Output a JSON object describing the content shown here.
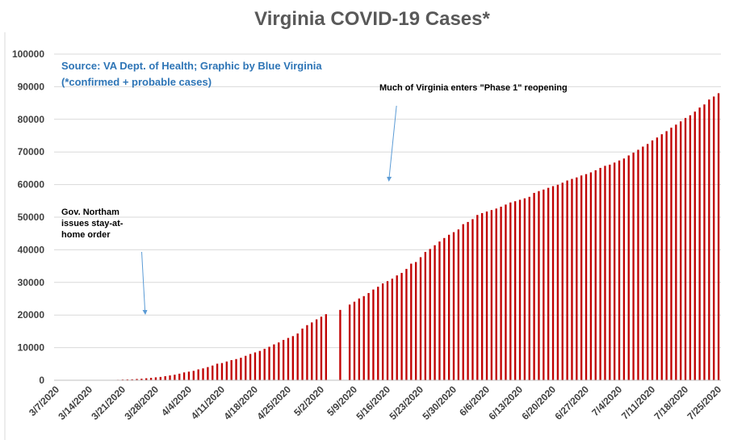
{
  "chart_data": {
    "type": "bar",
    "title": "Virginia COVID-19 Cases*",
    "source_line1": "Source: VA Dept. of Health; Graphic by Blue Virginia",
    "source_line2": "(*confirmed + probable cases)",
    "xlabel": "",
    "ylabel": "",
    "ylim": [
      0,
      100000
    ],
    "yticks": [
      "0",
      "10000",
      "20000",
      "30000",
      "40000",
      "50000",
      "60000",
      "70000",
      "80000",
      "90000",
      "100000"
    ],
    "xticks": [
      "3/7/2020",
      "3/14/2020",
      "3/21/2020",
      "3/28/2020",
      "4/4/2020",
      "4/11/2020",
      "4/18/2020",
      "4/25/2020",
      "5/2/2020",
      "5/9/2020",
      "5/16/2020",
      "5/23/2020",
      "5/30/2020",
      "6/6/2020",
      "6/13/2020",
      "6/20/2020",
      "6/27/2020",
      "7/4/2020",
      "7/11/2020",
      "7/18/2020",
      "7/25/2020"
    ],
    "grid": true,
    "bar_color": "#c00000",
    "start_date": "3/7/2020",
    "values": [
      2,
      2,
      3,
      5,
      8,
      9,
      17,
      30,
      45,
      67,
      77,
      99,
      114,
      152,
      219,
      254,
      290,
      391,
      460,
      604,
      739,
      890,
      1020,
      1250,
      1484,
      1706,
      2012,
      2407,
      2637,
      2878,
      3333,
      3645,
      4042,
      4509,
      5077,
      5274,
      5747,
      6171,
      6500,
      6889,
      7491,
      8053,
      8537,
      8990,
      9630,
      10266,
      10998,
      11594,
      12366,
      12970,
      13535,
      14339,
      15846,
      16901,
      17731,
      18671,
      19492,
      20256,
      null,
      null,
      21570,
      null,
      23196,
      24081,
      25070,
      25800,
      26746,
      27813,
      28672,
      29683,
      30388,
      31140,
      32145,
      32908,
      34137,
      35749,
      36244,
      37727,
      39342,
      40249,
      41401,
      42533,
      43611,
      44607,
      45398,
      46239,
      47856,
      48532,
      49397,
      50681,
      51251,
      51738,
      52177,
      52647,
      53211,
      53869,
      54506,
      54886,
      55331,
      55775,
      56238,
      57443,
      57994,
      58465,
      58994,
      59514,
      59946,
      60570,
      61247,
      61736,
      62189,
      62787,
      63203,
      63735,
      64393,
      65109,
      65748,
      66102,
      66740,
      67375,
      67988,
      68931,
      69782,
      70670,
      71642,
      72443,
      73527,
      74431,
      75433,
      76373,
      77430,
      78375,
      79371,
      80393,
      81237,
      82364,
      83609,
      84567,
      86072,
      86994,
      88000
    ],
    "annotations": [
      {
        "lines": [
          "Gov. Northam",
          "issues stay-at-",
          "home order"
        ],
        "date_index": 24
      },
      {
        "lines": [
          "Much of Virginia enters \"Phase 1\" reopening"
        ],
        "date_index": 69
      }
    ]
  }
}
